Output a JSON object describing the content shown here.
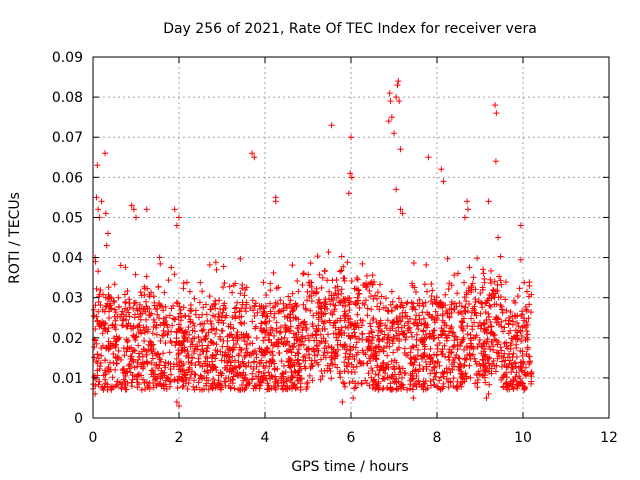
{
  "chart_data": {
    "type": "scatter",
    "title": "Day 256 of 2021, Rate Of TEC Index for receiver vera",
    "xlabel": "GPS time / hours",
    "ylabel": "ROTI / TECUs",
    "xlim": [
      0,
      12
    ],
    "ylim": [
      0,
      0.09
    ],
    "xticks": [
      0,
      2,
      4,
      6,
      8,
      10,
      12
    ],
    "yticks": [
      0,
      0.01,
      0.02,
      0.03,
      0.04,
      0.05,
      0.06,
      0.07,
      0.08,
      0.09
    ],
    "x_tick_labels": [
      "0",
      "2",
      "4",
      "6",
      "8",
      "10",
      "12"
    ],
    "y_tick_labels": [
      "0",
      "0.01",
      "0.02",
      "0.03",
      "0.04",
      "0.05",
      "0.06",
      "0.07",
      "0.08",
      "0.09"
    ],
    "grid": true,
    "marker": "plus",
    "color": "#ff0000",
    "series": [
      {
        "name": "ROTI",
        "description": "Dense cloud of ROTI samples between 0 and ~10.2 hours, mostly 0.005-0.03 TECU/min",
        "points": [
          [
            0.05,
            0.04
          ],
          [
            0.06,
            0.039
          ],
          [
            0.08,
            0.055
          ],
          [
            0.1,
            0.063
          ],
          [
            0.12,
            0.052
          ],
          [
            0.15,
            0.05
          ],
          [
            0.2,
            0.054
          ],
          [
            0.28,
            0.066
          ],
          [
            0.3,
            0.051
          ],
          [
            0.35,
            0.046
          ],
          [
            0.32,
            0.043
          ],
          [
            0.05,
            0.006
          ],
          [
            0.9,
            0.053
          ],
          [
            0.95,
            0.052
          ],
          [
            1.0,
            0.05
          ],
          [
            1.25,
            0.052
          ],
          [
            1.55,
            0.04
          ],
          [
            1.9,
            0.052
          ],
          [
            1.95,
            0.048
          ],
          [
            2.0,
            0.05
          ],
          [
            1.95,
            0.004
          ],
          [
            2.0,
            0.003
          ],
          [
            3.7,
            0.066
          ],
          [
            3.75,
            0.065
          ],
          [
            4.25,
            0.055
          ],
          [
            4.25,
            0.054
          ],
          [
            5.55,
            0.073
          ],
          [
            5.95,
            0.056
          ],
          [
            5.98,
            0.061
          ],
          [
            6.0,
            0.07
          ],
          [
            6.02,
            0.06
          ],
          [
            6.9,
            0.081
          ],
          [
            6.92,
            0.079
          ],
          [
            6.95,
            0.075
          ],
          [
            6.88,
            0.074
          ],
          [
            7.0,
            0.071
          ],
          [
            7.05,
            0.057
          ],
          [
            7.08,
            0.083
          ],
          [
            7.1,
            0.084
          ],
          [
            7.05,
            0.08
          ],
          [
            7.12,
            0.079
          ],
          [
            7.15,
            0.067
          ],
          [
            7.15,
            0.052
          ],
          [
            7.2,
            0.051
          ],
          [
            7.8,
            0.065
          ],
          [
            8.1,
            0.062
          ],
          [
            8.15,
            0.059
          ],
          [
            8.7,
            0.054
          ],
          [
            8.72,
            0.052
          ],
          [
            8.65,
            0.05
          ],
          [
            9.35,
            0.078
          ],
          [
            9.38,
            0.076
          ],
          [
            9.37,
            0.064
          ],
          [
            9.2,
            0.054
          ],
          [
            9.95,
            0.048
          ],
          [
            5.8,
            0.004
          ],
          [
            6.05,
            0.005
          ],
          [
            7.45,
            0.005
          ],
          [
            9.15,
            0.005
          ],
          [
            9.2,
            0.006
          ]
        ]
      }
    ]
  }
}
